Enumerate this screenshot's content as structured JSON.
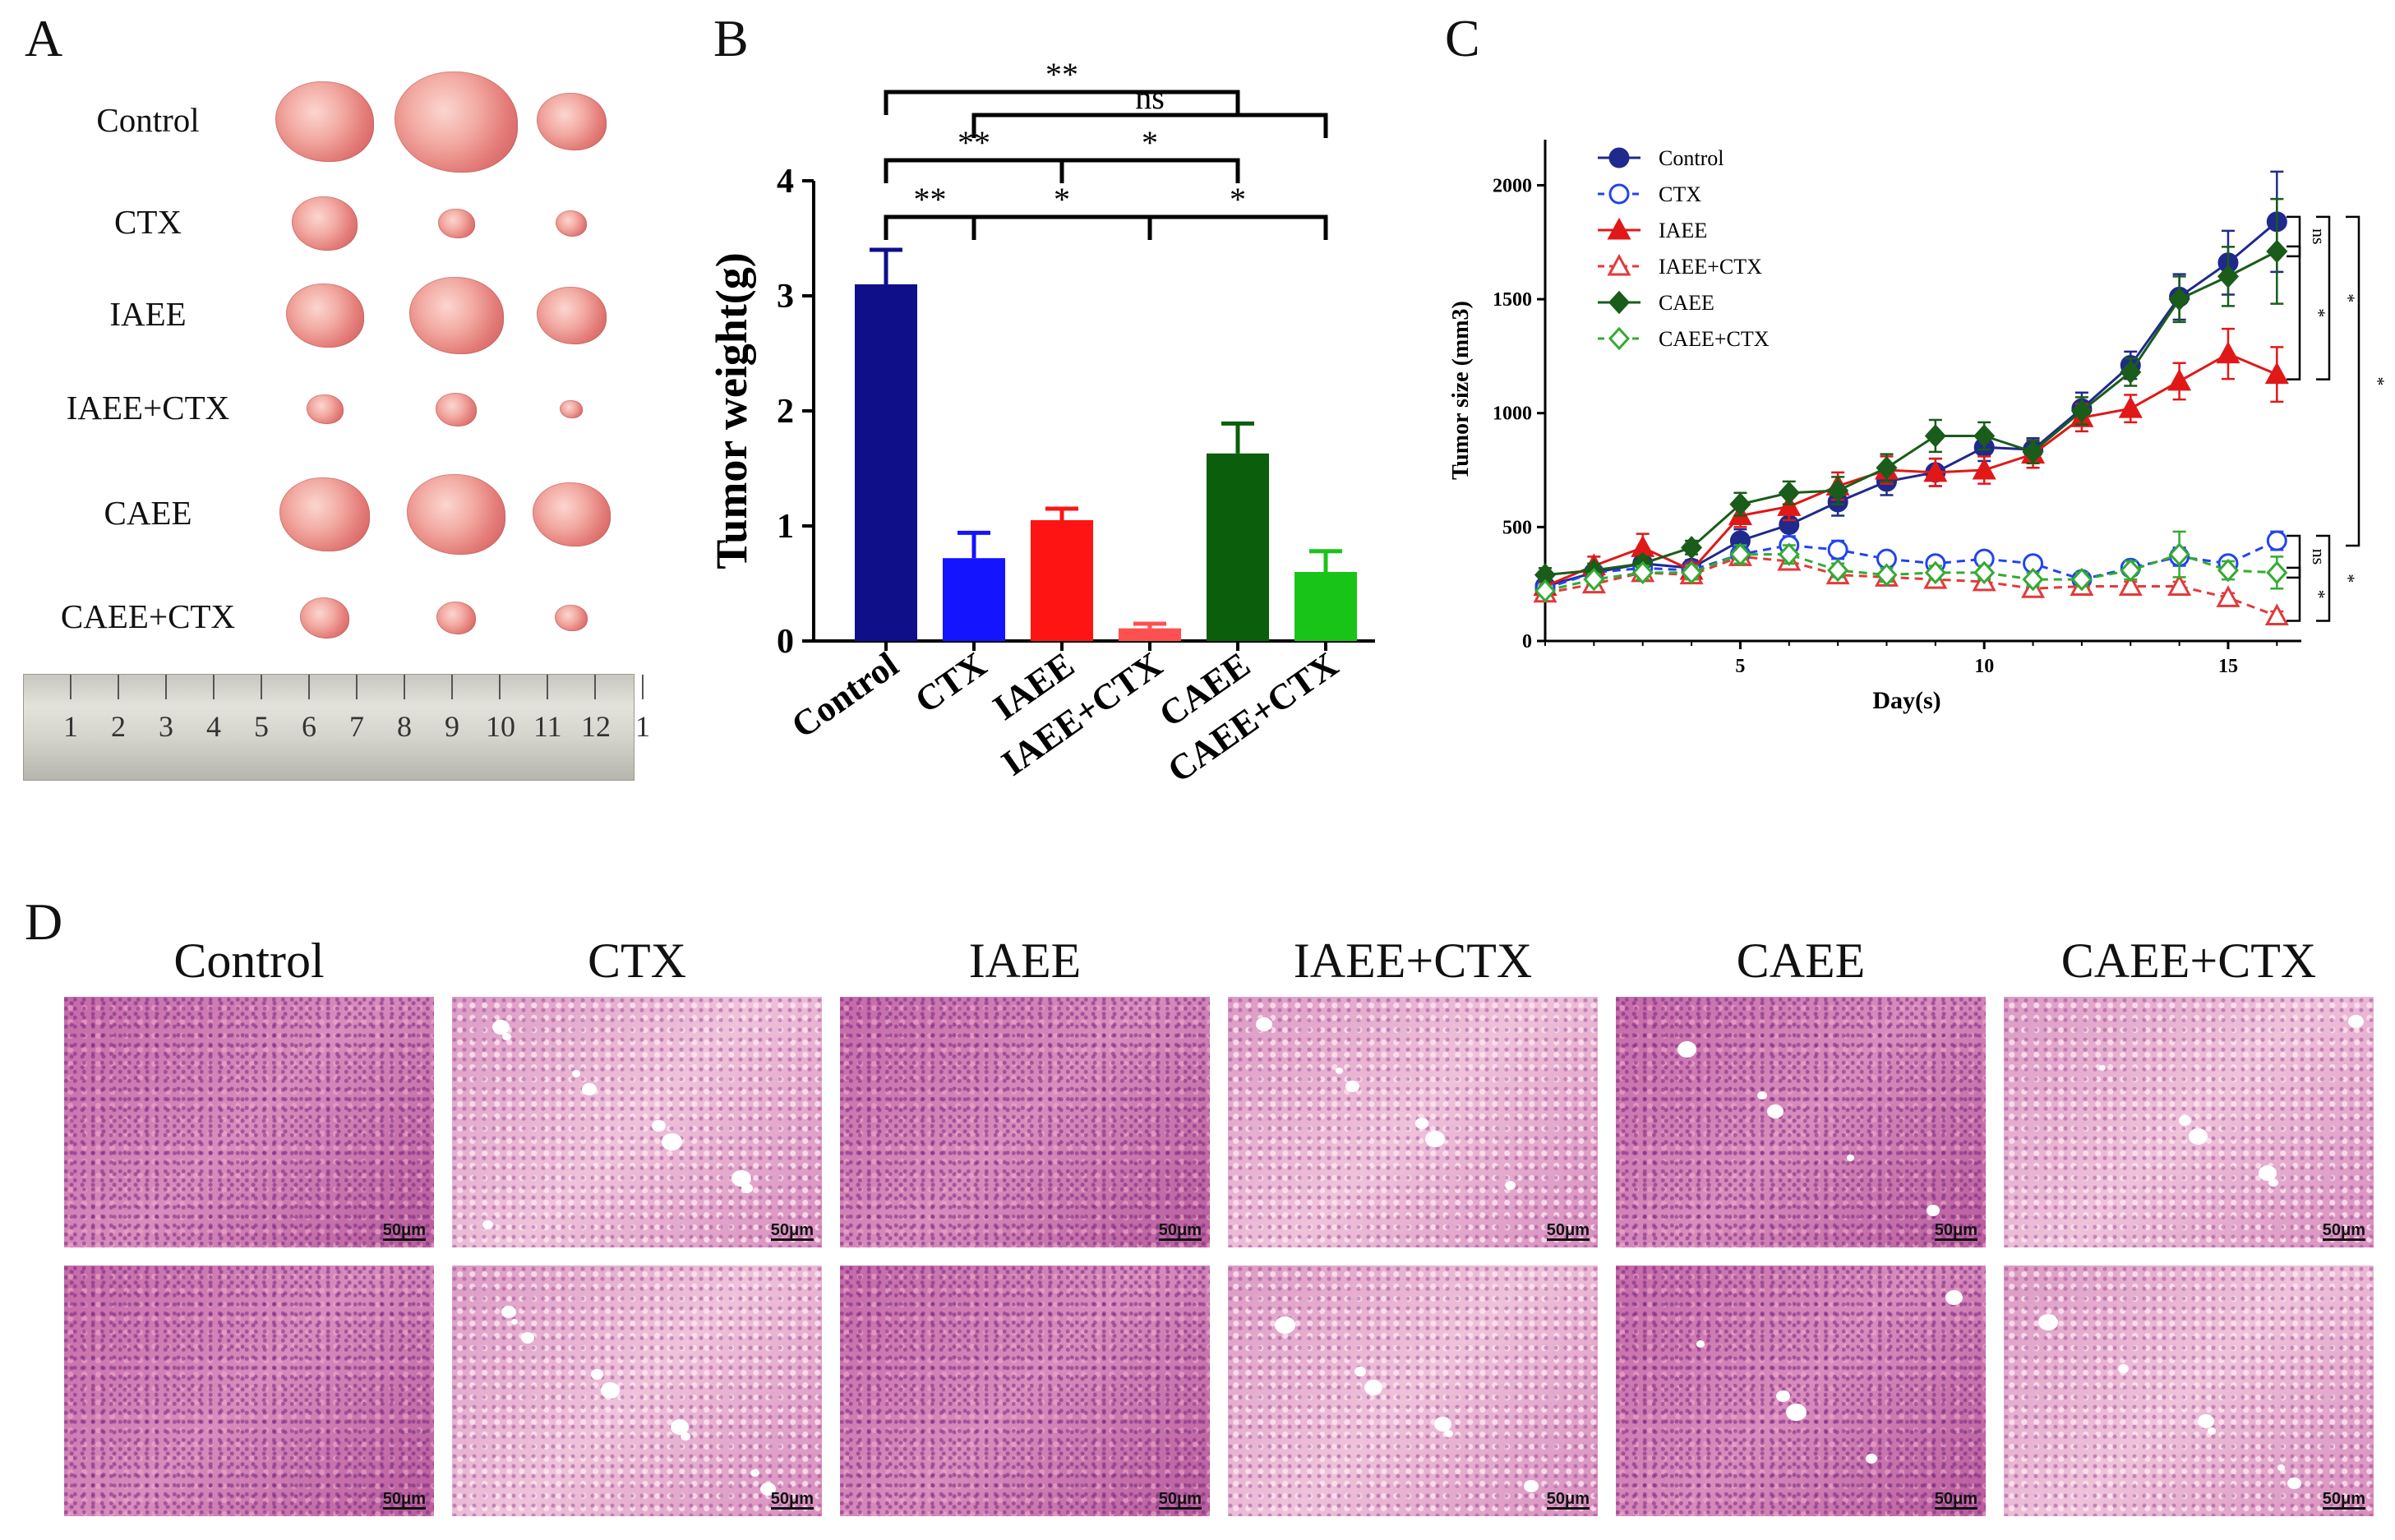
{
  "panels": {
    "A": "A",
    "B": "B",
    "C": "C",
    "D": "D"
  },
  "panelA": {
    "groups": [
      "Control",
      "CTX",
      "IAEE",
      "IAEE+CTX",
      "CAEE",
      "CAEE+CTX"
    ],
    "ruler_numbers": [
      "1",
      "2",
      "3",
      "4",
      "5",
      "6",
      "7",
      "8",
      "9",
      "10",
      "11",
      "12",
      "1"
    ]
  },
  "chart_data": [
    {
      "panel": "B",
      "type": "bar",
      "title": "",
      "xlabel": "",
      "ylabel": "Tumor weight(g)",
      "ylim": [
        0,
        4
      ],
      "yticks": [
        "0",
        "1",
        "2",
        "3",
        "4"
      ],
      "categories": [
        "Control",
        "CTX",
        "IAEE",
        "IAEE+CTX",
        "CAEE",
        "CAEE+CTX"
      ],
      "values": [
        3.1,
        0.72,
        1.05,
        0.11,
        1.63,
        0.6
      ],
      "errors": [
        0.3,
        0.22,
        0.1,
        0.04,
        0.26,
        0.18
      ],
      "colors": [
        "#0f0f8a",
        "#1414ff",
        "#ff1414",
        "#ff5050",
        "#0b5e0b",
        "#19c419"
      ],
      "significance": [
        {
          "from": "Control",
          "to": "CAEE",
          "label": "**"
        },
        {
          "from": "CTX",
          "to": "CAEE+CTX",
          "label": "ns"
        },
        {
          "from": "Control",
          "to": "IAEE",
          "label": "**"
        },
        {
          "from": "IAEE",
          "to": "CAEE",
          "label": "*"
        },
        {
          "from": "Control",
          "to": "CTX",
          "label": "**"
        },
        {
          "from": "CTX",
          "to": "IAEE+CTX",
          "label": "*"
        },
        {
          "from": "IAEE+CTX",
          "to": "CAEE+CTX",
          "label": "*"
        }
      ]
    },
    {
      "panel": "C",
      "type": "line",
      "title": "",
      "xlabel": "Day(s)",
      "ylabel": "Tumor size (mm3)",
      "xlim": [
        1,
        16.5
      ],
      "ylim": [
        0,
        2200
      ],
      "xticks": [
        "5",
        "10",
        "15"
      ],
      "yticks": [
        "0",
        "500",
        "1000",
        "1500",
        "2000"
      ],
      "x": [
        1,
        2,
        3,
        4,
        5,
        6,
        7,
        8,
        9,
        10,
        11,
        12,
        13,
        14,
        15,
        16
      ],
      "legend_position": "top-left",
      "series": [
        {
          "name": "Control",
          "color": "#1f2a8c",
          "marker": "circle-filled",
          "dashed": false,
          "values": [
            240,
            300,
            340,
            320,
            440,
            510,
            610,
            700,
            740,
            850,
            840,
            1020,
            1210,
            1510,
            1660,
            1840
          ],
          "errors": [
            30,
            40,
            40,
            35,
            50,
            60,
            60,
            60,
            60,
            60,
            50,
            70,
            60,
            100,
            140,
            220
          ]
        },
        {
          "name": "CTX",
          "color": "#2244ee",
          "marker": "circle-open",
          "dashed": true,
          "values": [
            230,
            300,
            320,
            310,
            380,
            420,
            400,
            360,
            340,
            360,
            340,
            270,
            320,
            370,
            340,
            440
          ],
          "errors": [
            20,
            25,
            30,
            30,
            40,
            40,
            40,
            30,
            30,
            30,
            30,
            30,
            30,
            40,
            30,
            40
          ]
        },
        {
          "name": "IAEE",
          "color": "#e01818",
          "marker": "triangle-filled",
          "dashed": false,
          "values": [
            240,
            330,
            410,
            310,
            550,
            590,
            680,
            750,
            740,
            750,
            820,
            980,
            1020,
            1140,
            1260,
            1170
          ],
          "errors": [
            30,
            40,
            60,
            30,
            50,
            60,
            60,
            60,
            60,
            60,
            60,
            60,
            60,
            80,
            110,
            120
          ]
        },
        {
          "name": "IAEE+CTX",
          "color": "#e23a3a",
          "marker": "triangle-open",
          "dashed": true,
          "values": [
            210,
            250,
            300,
            290,
            370,
            350,
            290,
            280,
            270,
            260,
            230,
            240,
            240,
            240,
            190,
            110
          ],
          "errors": [
            20,
            20,
            30,
            30,
            30,
            30,
            20,
            20,
            20,
            20,
            20,
            20,
            20,
            20,
            20,
            20
          ]
        },
        {
          "name": "CAEE",
          "color": "#1a5c1a",
          "marker": "diamond-filled",
          "dashed": false,
          "values": [
            290,
            310,
            340,
            410,
            600,
            650,
            660,
            760,
            900,
            900,
            830,
            1010,
            1180,
            1500,
            1600,
            1710
          ],
          "errors": [
            30,
            30,
            30,
            30,
            50,
            50,
            60,
            60,
            70,
            60,
            50,
            60,
            60,
            100,
            130,
            230
          ]
        },
        {
          "name": "CAEE+CTX",
          "color": "#33aa33",
          "marker": "diamond-open",
          "dashed": true,
          "values": [
            220,
            270,
            300,
            300,
            380,
            380,
            310,
            290,
            300,
            300,
            270,
            270,
            310,
            380,
            310,
            300
          ],
          "errors": [
            20,
            25,
            30,
            30,
            40,
            40,
            30,
            30,
            30,
            30,
            30,
            30,
            40,
            100,
            40,
            70
          ]
        }
      ],
      "significance": [
        {
          "between": [
            "Control",
            "CAEE"
          ],
          "label": "ns"
        },
        {
          "between": [
            "CAEE",
            "IAEE"
          ],
          "label": "*"
        },
        {
          "between": [
            "Control",
            "IAEE"
          ],
          "label": "*"
        },
        {
          "between": [
            "Control",
            "CTX"
          ],
          "label": "*"
        },
        {
          "between": [
            "CTX",
            "CAEE+CTX"
          ],
          "label": "ns"
        },
        {
          "between": [
            "CAEE+CTX",
            "IAEE+CTX"
          ],
          "label": "*"
        },
        {
          "between": [
            "CTX",
            "IAEE+CTX"
          ],
          "label": "*"
        }
      ]
    }
  ],
  "panelD": {
    "groups": [
      "Control",
      "CTX",
      "IAEE",
      "IAEE+CTX",
      "CAEE",
      "CAEE+CTX"
    ],
    "scale_bar": "50μm"
  }
}
